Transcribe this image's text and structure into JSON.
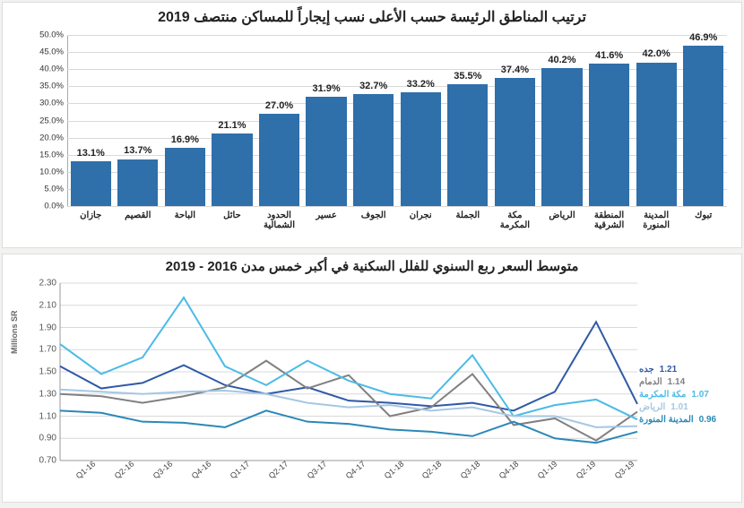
{
  "bar_chart": {
    "type": "bar",
    "title": "ترتيب المناطق الرئيسة حسب الأعلى نسب إيجاراً للمساكن منتصف 2019",
    "title_fontsize": 16,
    "ymin": 0,
    "ymax": 50,
    "ytick_step": 5,
    "ytick_suffix": "%",
    "bar_color": "#2f6faa",
    "grid_color": "#d9d9d9",
    "background": "#ffffff",
    "categories": [
      "تبوك",
      "المدينة المنورة",
      "المنطقة الشرقية",
      "الرياض",
      "مكة المكرمة",
      "الجملة",
      "نجران",
      "الجوف",
      "عسير",
      "الحدود الشمالية",
      "حائل",
      "الباحة",
      "القصيم",
      "جازان"
    ],
    "values": [
      46.9,
      42.0,
      41.6,
      40.2,
      37.4,
      35.5,
      33.2,
      32.7,
      31.9,
      27.0,
      21.1,
      16.9,
      13.7,
      13.1
    ],
    "value_suffix": "%",
    "value_fontsize": 11,
    "xlabel_fontsize": 10,
    "bar_width_ratio": 0.86
  },
  "line_chart": {
    "type": "line",
    "title": "متوسط السعر ربع السنوي للفلل السكنية في أكبر خمس مدن 2016 - 2019",
    "title_fontsize": 15,
    "ymin": 0.7,
    "ymax": 2.3,
    "ytick_step": 0.2,
    "y_unit_label": "Millions SR",
    "grid_color": "#d9d9d9",
    "axis_color": "#999999",
    "background": "#ffffff",
    "x_labels": [
      "Q1-16",
      "Q2-16",
      "Q3-16",
      "Q4-16",
      "Q1-17",
      "Q2-17",
      "Q3-17",
      "Q4-17",
      "Q1-18",
      "Q2-18",
      "Q3-18",
      "Q4-18",
      "Q1-19",
      "Q2-19",
      "Q3-19"
    ],
    "series": [
      {
        "name": "جده",
        "color": "#2f59a7",
        "end_value": 1.21,
        "data": [
          1.55,
          1.35,
          1.4,
          1.56,
          1.38,
          1.3,
          1.36,
          1.24,
          1.22,
          1.19,
          1.22,
          1.15,
          1.32,
          1.95,
          1.21
        ]
      },
      {
        "name": "الدمام",
        "color": "#808080",
        "end_value": 1.14,
        "data": [
          1.3,
          1.28,
          1.22,
          1.28,
          1.36,
          1.6,
          1.35,
          1.47,
          1.1,
          1.18,
          1.48,
          1.02,
          1.08,
          0.88,
          1.14
        ]
      },
      {
        "name": "مكة المكرمة",
        "color": "#4bbbe6",
        "end_value": 1.07,
        "data": [
          1.75,
          1.48,
          1.63,
          2.17,
          1.55,
          1.38,
          1.6,
          1.42,
          1.3,
          1.26,
          1.65,
          1.1,
          1.2,
          1.25,
          1.07
        ]
      },
      {
        "name": "الرياض",
        "color": "#a5c7e3",
        "end_value": 1.01,
        "data": [
          1.34,
          1.32,
          1.3,
          1.32,
          1.33,
          1.3,
          1.22,
          1.18,
          1.2,
          1.15,
          1.18,
          1.1,
          1.1,
          1.0,
          1.01
        ]
      },
      {
        "name": "المدينة المنورة",
        "color": "#2a88b8",
        "end_value": 0.96,
        "data": [
          1.15,
          1.13,
          1.05,
          1.04,
          1.0,
          1.15,
          1.05,
          1.03,
          0.98,
          0.96,
          0.92,
          1.05,
          0.9,
          0.86,
          0.96
        ]
      }
    ],
    "legend_fontsize": 10
  }
}
